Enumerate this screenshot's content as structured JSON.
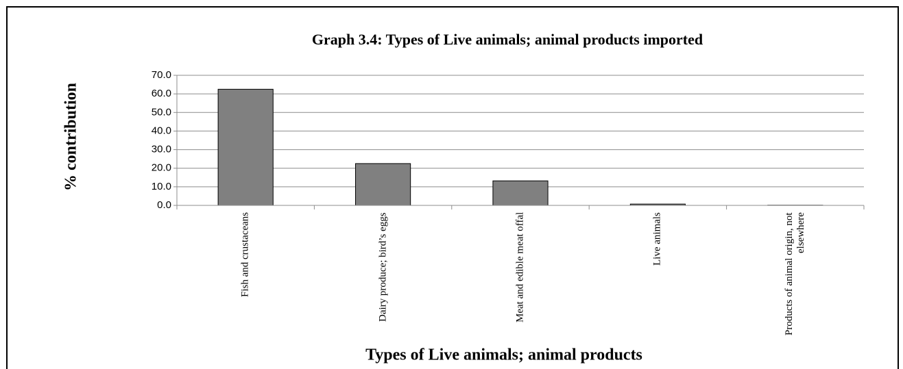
{
  "chart_data": {
    "type": "bar",
    "title": "Graph 3.4: Types of  Live animals; animal products imported",
    "x_label": "Types of  Live animals; animal products",
    "y_label": "% contribution",
    "categories": [
      "Fish and crustaceans",
      "Dairy produce; bird’s eggs",
      "Meat and edible meat offal",
      "Live animals",
      "Products of animal origin, not elsewhere"
    ],
    "values": [
      62.5,
      22.5,
      13.2,
      0.7,
      0.1
    ],
    "color": "#808080",
    "ylim": [
      0,
      70
    ],
    "yticks": [
      {
        "value": 0,
        "label": "0.0"
      },
      {
        "value": 10,
        "label": "10.0"
      },
      {
        "value": 20,
        "label": "20.0"
      },
      {
        "value": 30,
        "label": "30.0"
      },
      {
        "value": 40,
        "label": "40.0"
      },
      {
        "value": 50,
        "label": "50.0"
      },
      {
        "value": 60,
        "label": "60.0"
      },
      {
        "value": 70,
        "label": "70.0"
      }
    ],
    "grid": true
  }
}
